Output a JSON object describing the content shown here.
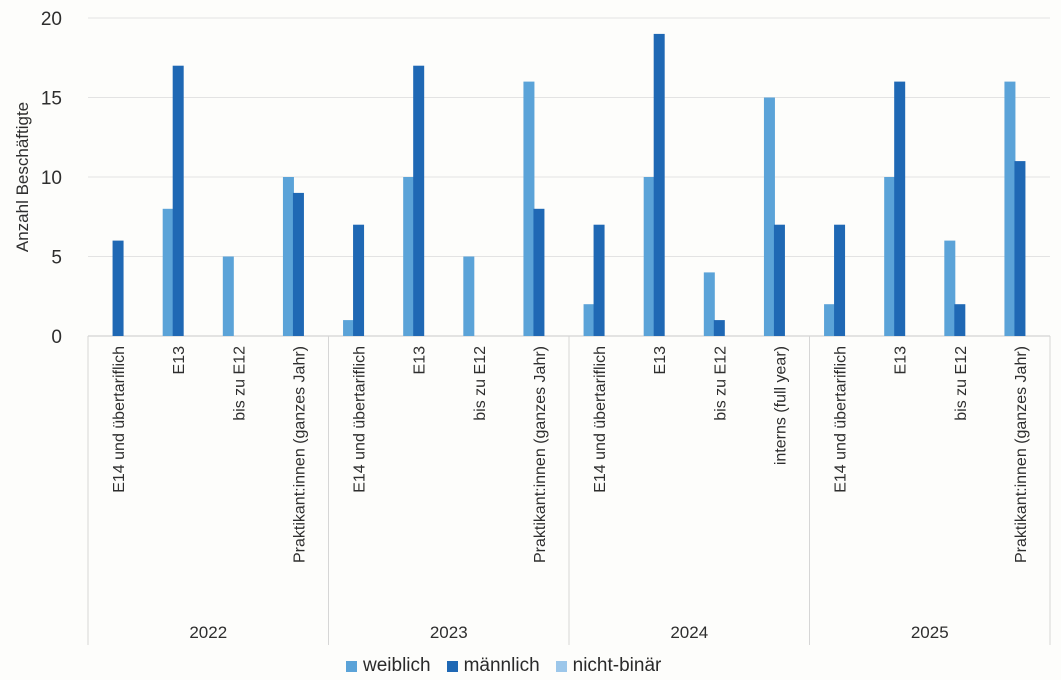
{
  "chart_data": {
    "type": "bar",
    "title": "",
    "xlabel": "",
    "ylabel": "Anzahl Beschäftigte",
    "ylim": [
      0,
      20
    ],
    "yticks": [
      0,
      5,
      10,
      15,
      20
    ],
    "grid": true,
    "legend_position": "bottom",
    "series": [
      {
        "name": "weiblich",
        "color": "#5ba3d8"
      },
      {
        "name": "männlich",
        "color": "#1f68b4"
      },
      {
        "name": "nicht-binär",
        "color": "#9cc7ea"
      }
    ],
    "groups": [
      {
        "label": "2022",
        "categories": [
          {
            "label": "E14 und übertariflich",
            "values": [
              0,
              6,
              0
            ]
          },
          {
            "label": "E13",
            "values": [
              8,
              17,
              0
            ]
          },
          {
            "label": "bis zu E12",
            "values": [
              5,
              0,
              0
            ]
          },
          {
            "label": "Praktikant:innen (ganzes Jahr)",
            "values": [
              10,
              9,
              0
            ]
          }
        ]
      },
      {
        "label": "2023",
        "categories": [
          {
            "label": "E14 und übertariflich",
            "values": [
              1,
              7,
              0
            ]
          },
          {
            "label": "E13",
            "values": [
              10,
              17,
              0
            ]
          },
          {
            "label": "bis zu E12",
            "values": [
              5,
              0,
              0
            ]
          },
          {
            "label": "Praktikant:innen (ganzes Jahr)",
            "values": [
              16,
              8,
              0
            ]
          }
        ]
      },
      {
        "label": "2024",
        "categories": [
          {
            "label": "E14 und übertariflich",
            "values": [
              2,
              7,
              0
            ]
          },
          {
            "label": "E13",
            "values": [
              10,
              19,
              0
            ]
          },
          {
            "label": "bis zu E12",
            "values": [
              4,
              1,
              0
            ]
          },
          {
            "label": "interns (full year)",
            "values": [
              15,
              7,
              0
            ]
          }
        ]
      },
      {
        "label": "2025",
        "categories": [
          {
            "label": "E14 und übertariflich",
            "values": [
              2,
              7,
              0
            ]
          },
          {
            "label": "E13",
            "values": [
              10,
              16,
              0
            ]
          },
          {
            "label": "bis zu E12",
            "values": [
              6,
              2,
              0
            ]
          },
          {
            "label": "Praktikant:innen (ganzes Jahr)",
            "values": [
              16,
              11,
              0
            ]
          }
        ]
      }
    ]
  }
}
